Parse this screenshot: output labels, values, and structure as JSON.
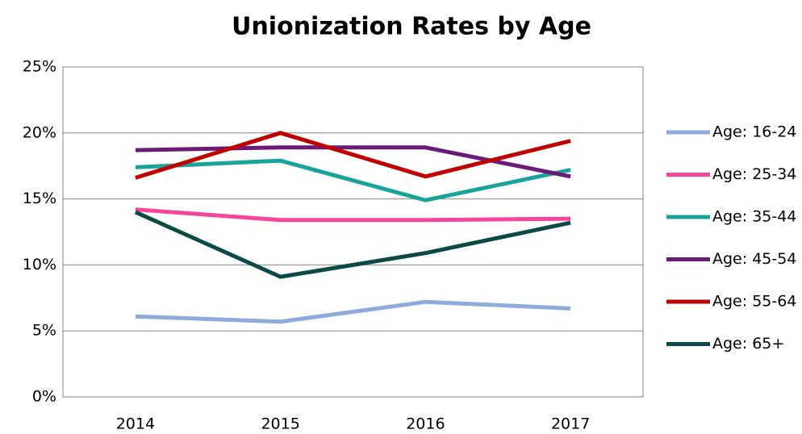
{
  "chart_data": {
    "type": "line",
    "title": "Unionization Rates by Age",
    "categories": [
      "2014",
      "2015",
      "2016",
      "2017"
    ],
    "series": [
      {
        "name": "Age: 16-24",
        "color": "#8faadc",
        "values": [
          6.1,
          5.7,
          7.2,
          6.7
        ]
      },
      {
        "name": "Age: 25-34",
        "color": "#f5469b",
        "values": [
          14.2,
          13.4,
          13.4,
          13.5
        ]
      },
      {
        "name": "Age: 35-44",
        "color": "#1aa39a",
        "values": [
          17.4,
          17.9,
          14.9,
          17.2
        ]
      },
      {
        "name": "Age: 45-54",
        "color": "#6b1a78",
        "values": [
          18.7,
          18.9,
          18.9,
          16.7
        ]
      },
      {
        "name": "Age: 55-64",
        "color": "#c00000",
        "values": [
          16.6,
          20.0,
          16.7,
          19.4
        ]
      },
      {
        "name": "Age: 65+",
        "color": "#0b4a47",
        "values": [
          14.0,
          9.1,
          10.9,
          13.2
        ]
      }
    ],
    "ylim": [
      0,
      25
    ],
    "yticks": [
      {
        "value": 0,
        "label": "0%"
      },
      {
        "value": 5,
        "label": "5%"
      },
      {
        "value": 10,
        "label": "10%"
      },
      {
        "value": 15,
        "label": "15%"
      },
      {
        "value": 20,
        "label": "20%"
      },
      {
        "value": 25,
        "label": "25%"
      }
    ],
    "grid": true,
    "legend": "right"
  }
}
